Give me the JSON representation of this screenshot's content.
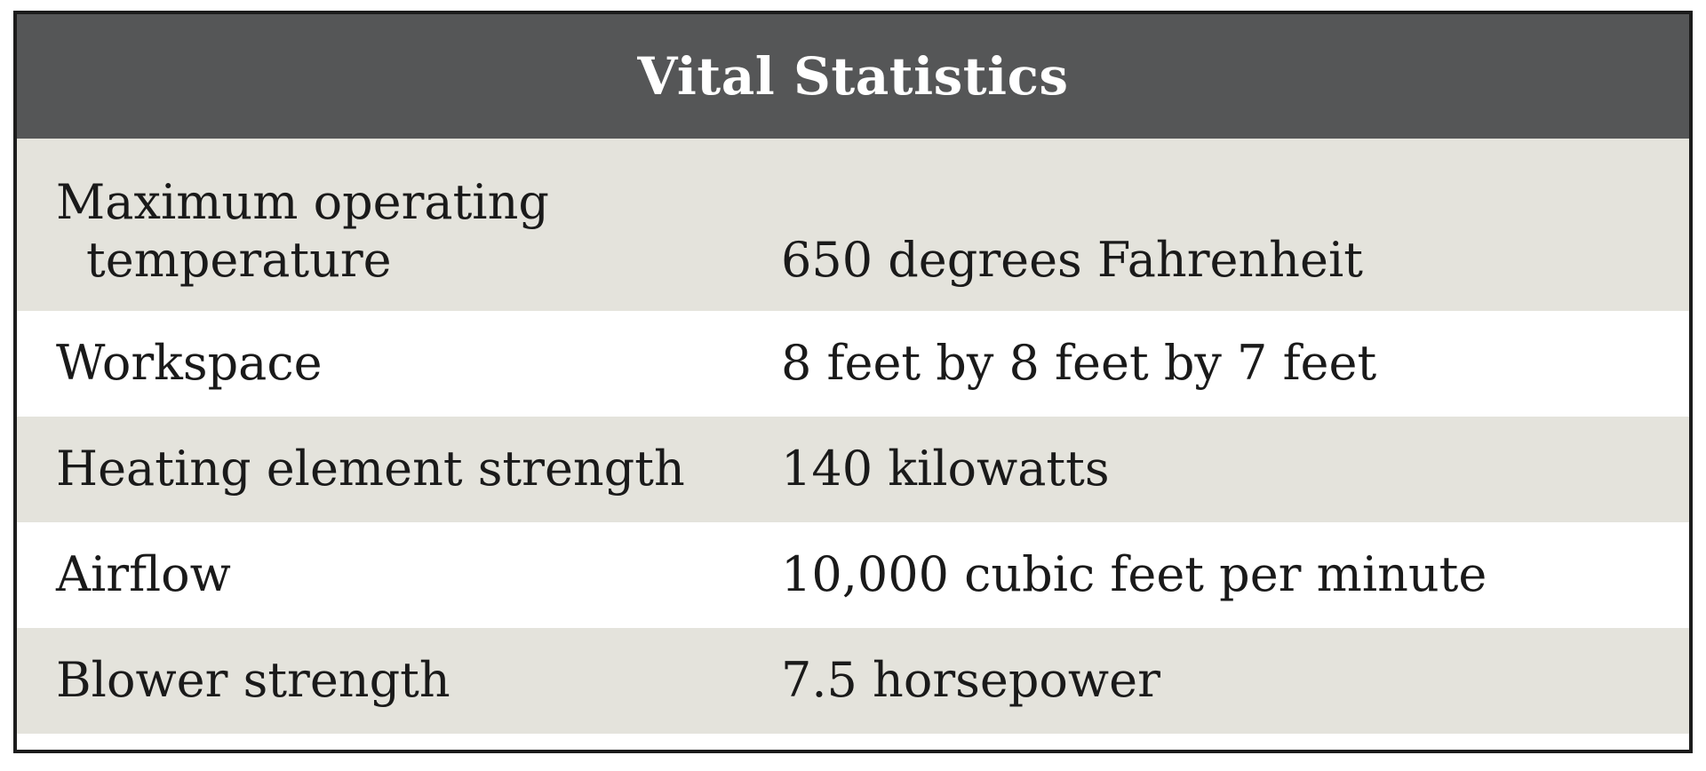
{
  "table": {
    "title": "Vital Statistics",
    "rows": [
      {
        "label_line1": "Maximum operating",
        "label_line2": "temperature",
        "value": "650 degrees Fahrenheit"
      },
      {
        "label": "Workspace",
        "value": "8 feet by 8 feet by 7 feet"
      },
      {
        "label": "Heating element strength",
        "value": "140 kilowatts"
      },
      {
        "label": "Airflow",
        "value": "10,000 cubic feet per minute"
      },
      {
        "label": "Blower strength",
        "value": "7.5 horsepower"
      }
    ]
  },
  "colors": {
    "header_bg": "#555657",
    "header_text": "#ffffff",
    "row_shade": "#e4e3dc",
    "row_plain": "#ffffff",
    "border": "#1c1c1c"
  }
}
